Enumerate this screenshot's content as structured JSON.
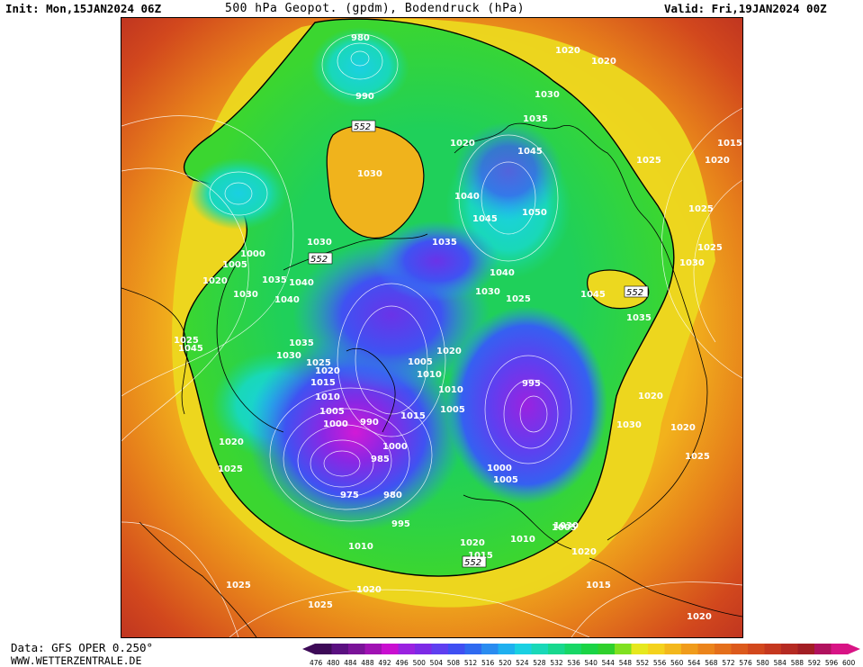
{
  "header": {
    "init": "Init: Mon,15JAN2024 06Z",
    "title": "500 hPa Geopot. (gpdm), Bodendruck (hPa)",
    "valid": "Valid: Fri,19JAN2024 00Z"
  },
  "footer": {
    "source": "Data: GFS OPER 0.250°",
    "website": "WWW.WETTERZENTRALE.DE"
  },
  "colorbar": {
    "ticks": [
      "476",
      "480",
      "484",
      "488",
      "492",
      "496",
      "500",
      "504",
      "508",
      "512",
      "516",
      "520",
      "524",
      "528",
      "532",
      "536",
      "540",
      "544",
      "548",
      "552",
      "556",
      "560",
      "564",
      "568",
      "572",
      "576",
      "580",
      "584",
      "588",
      "592",
      "596",
      "600"
    ],
    "colors": [
      "#3d0a57",
      "#5a1080",
      "#7a1398",
      "#a012b3",
      "#c90fd0",
      "#9a22e0",
      "#7d2ae6",
      "#5f3ff0",
      "#3f4ff2",
      "#2f6af0",
      "#2a8cf0",
      "#1fb0ef",
      "#1ad0e2",
      "#19d8b8",
      "#18d88e",
      "#18d766",
      "#1ad445",
      "#2fd02c",
      "#80e020",
      "#e6e81e",
      "#f4d21c",
      "#f3b81c",
      "#f09c1b",
      "#eb841b",
      "#e46f1b",
      "#dc5a1c",
      "#d2481d",
      "#c5381f",
      "#b52a22",
      "#a21e24",
      "#b0125e",
      "#d81485"
    ]
  },
  "map": {
    "contour_552_label": "552",
    "pressure_labels": [
      "980",
      "990",
      "1020",
      "1020",
      "1030",
      "1035",
      "1020",
      "1045",
      "1040",
      "1050",
      "1045",
      "1030",
      "1015",
      "1020",
      "1025",
      "1025",
      "1025",
      "1035",
      "1030",
      "1000",
      "1005",
      "1020",
      "1030",
      "1035",
      "1040",
      "1035",
      "1040",
      "1030",
      "1025",
      "1040",
      "1045",
      "1030",
      "1025",
      "1045",
      "1035",
      "1025",
      "1030",
      "1020",
      "1015",
      "1010",
      "1005",
      "1000",
      "1005",
      "1010",
      "1015",
      "1010",
      "1005",
      "1020",
      "995",
      "990",
      "985",
      "1000",
      "975",
      "980",
      "995",
      "1000",
      "1005",
      "1020",
      "1010",
      "1005",
      "1015",
      "1010",
      "1020",
      "1025",
      "1025",
      "1030",
      "1020",
      "1025",
      "1020",
      "1015",
      "1020",
      "1020",
      "1025",
      "1020",
      "1030",
      "1030"
    ]
  }
}
